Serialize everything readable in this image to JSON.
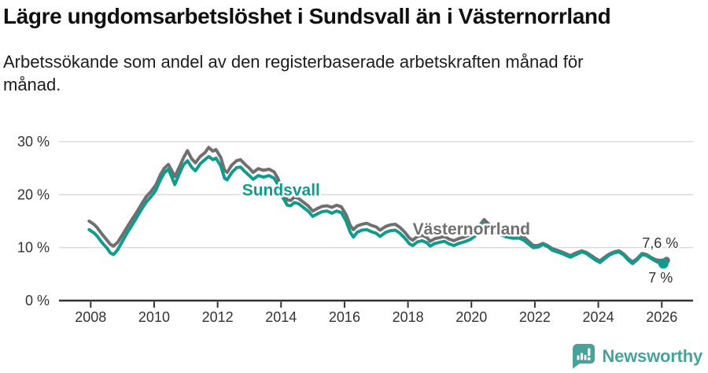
{
  "header": {
    "title": "Lägre ungdomsarbetslöshet i Sundsvall än i Västernorrland",
    "subtitle_lines": [
      "Arbetssökande som andel av den registerbaserade arbetskraften månad för",
      "månad."
    ]
  },
  "footer": {
    "brand": "Newsworthy",
    "logo_icon": "newsworthy-speech-bubble-bar-chart",
    "brand_color": "#48a29a"
  },
  "chart_data": {
    "type": "line",
    "title": "Lägre ungdomsarbetslöshet i Sundsvall än i Västernorrland",
    "ylabel": "",
    "xlabel": "",
    "grid": "horizontal",
    "legend_position": "inline-labels",
    "x_axis": {
      "min": 2007.0,
      "max": 2026.97,
      "ticks": [
        2008,
        2010,
        2012,
        2014,
        2016,
        2018,
        2020,
        2022,
        2024,
        2026
      ]
    },
    "y_axis": {
      "min": 0,
      "max": 32,
      "unit": "%",
      "ticks": [
        {
          "value": 0,
          "label": "0 %"
        },
        {
          "value": 10,
          "label": "10 %"
        },
        {
          "value": 20,
          "label": "20 %"
        },
        {
          "value": 30,
          "label": "30 %"
        }
      ]
    },
    "colors": {
      "grid": "#dadada",
      "axis": "#333333",
      "tick_text": "#333333"
    },
    "series": [
      {
        "name": "Västernorrland",
        "color": "#6f6f6f",
        "end_value_label": {
          "text": "7,6 %",
          "dx": 15,
          "dy": -16
        },
        "end_dot_radius": 4.5,
        "inline_label": {
          "text": "Västernorrland",
          "x": 2020.0,
          "y": 13.5
        },
        "points": [
          [
            2007.95,
            15.0
          ],
          [
            2008.1,
            14.4
          ],
          [
            2008.2,
            13.8
          ],
          [
            2008.35,
            12.6
          ],
          [
            2008.5,
            11.5
          ],
          [
            2008.62,
            10.6
          ],
          [
            2008.72,
            10.3
          ],
          [
            2008.85,
            11.0
          ],
          [
            2009.0,
            12.4
          ],
          [
            2009.15,
            13.9
          ],
          [
            2009.3,
            15.3
          ],
          [
            2009.45,
            16.7
          ],
          [
            2009.6,
            18.2
          ],
          [
            2009.75,
            19.6
          ],
          [
            2009.9,
            20.6
          ],
          [
            2010.05,
            21.8
          ],
          [
            2010.2,
            23.8
          ],
          [
            2010.32,
            25.0
          ],
          [
            2010.45,
            25.7
          ],
          [
            2010.55,
            24.6
          ],
          [
            2010.65,
            23.4
          ],
          [
            2010.8,
            25.3
          ],
          [
            2010.92,
            26.9
          ],
          [
            2011.05,
            28.3
          ],
          [
            2011.18,
            26.8
          ],
          [
            2011.3,
            26.0
          ],
          [
            2011.45,
            27.2
          ],
          [
            2011.6,
            27.9
          ],
          [
            2011.72,
            28.9
          ],
          [
            2011.85,
            28.2
          ],
          [
            2011.95,
            28.5
          ],
          [
            2012.1,
            27.0
          ],
          [
            2012.22,
            24.6
          ],
          [
            2012.3,
            24.2
          ],
          [
            2012.45,
            25.6
          ],
          [
            2012.6,
            26.4
          ],
          [
            2012.72,
            26.6
          ],
          [
            2012.85,
            25.8
          ],
          [
            2013.0,
            25.0
          ],
          [
            2013.12,
            24.2
          ],
          [
            2013.28,
            24.9
          ],
          [
            2013.45,
            24.6
          ],
          [
            2013.62,
            24.8
          ],
          [
            2013.78,
            24.3
          ],
          [
            2013.9,
            23.1
          ],
          [
            2014.05,
            20.6
          ],
          [
            2014.2,
            19.0
          ],
          [
            2014.3,
            18.9
          ],
          [
            2014.42,
            19.5
          ],
          [
            2014.55,
            19.3
          ],
          [
            2014.7,
            18.6
          ],
          [
            2014.85,
            17.9
          ],
          [
            2015.0,
            16.9
          ],
          [
            2015.15,
            17.4
          ],
          [
            2015.3,
            17.8
          ],
          [
            2015.45,
            17.9
          ],
          [
            2015.6,
            17.6
          ],
          [
            2015.75,
            18.0
          ],
          [
            2015.9,
            17.7
          ],
          [
            2016.05,
            16.2
          ],
          [
            2016.18,
            14.2
          ],
          [
            2016.28,
            13.4
          ],
          [
            2016.4,
            14.1
          ],
          [
            2016.55,
            14.4
          ],
          [
            2016.7,
            14.6
          ],
          [
            2016.85,
            14.2
          ],
          [
            2017.0,
            13.9
          ],
          [
            2017.12,
            13.3
          ],
          [
            2017.3,
            14.0
          ],
          [
            2017.45,
            14.3
          ],
          [
            2017.6,
            14.4
          ],
          [
            2017.75,
            13.8
          ],
          [
            2017.9,
            12.9
          ],
          [
            2018.05,
            11.8
          ],
          [
            2018.15,
            11.4
          ],
          [
            2018.3,
            12.1
          ],
          [
            2018.45,
            12.3
          ],
          [
            2018.6,
            11.9
          ],
          [
            2018.7,
            11.2
          ],
          [
            2018.85,
            11.7
          ],
          [
            2019.0,
            11.9
          ],
          [
            2019.15,
            12.1
          ],
          [
            2019.3,
            11.6
          ],
          [
            2019.45,
            11.3
          ],
          [
            2019.6,
            11.7
          ],
          [
            2019.78,
            12.0
          ],
          [
            2019.95,
            12.4
          ],
          [
            2020.1,
            13.0
          ],
          [
            2020.25,
            14.1
          ],
          [
            2020.4,
            15.3
          ],
          [
            2020.52,
            14.6
          ],
          [
            2020.65,
            13.9
          ],
          [
            2020.8,
            13.6
          ],
          [
            2020.95,
            13.3
          ],
          [
            2021.1,
            12.9
          ],
          [
            2021.3,
            12.6
          ],
          [
            2021.5,
            12.5
          ],
          [
            2021.65,
            12.0
          ],
          [
            2021.8,
            11.2
          ],
          [
            2021.95,
            10.4
          ],
          [
            2022.1,
            10.4
          ],
          [
            2022.25,
            10.8
          ],
          [
            2022.4,
            10.4
          ],
          [
            2022.55,
            9.8
          ],
          [
            2022.7,
            9.5
          ],
          [
            2022.85,
            9.2
          ],
          [
            2023.0,
            8.8
          ],
          [
            2023.12,
            8.5
          ],
          [
            2023.3,
            9.0
          ],
          [
            2023.48,
            9.4
          ],
          [
            2023.62,
            9.1
          ],
          [
            2023.78,
            8.5
          ],
          [
            2023.92,
            7.9
          ],
          [
            2024.05,
            7.5
          ],
          [
            2024.2,
            8.2
          ],
          [
            2024.35,
            8.8
          ],
          [
            2024.5,
            9.2
          ],
          [
            2024.65,
            9.4
          ],
          [
            2024.8,
            8.8
          ],
          [
            2024.95,
            7.9
          ],
          [
            2025.08,
            7.3
          ],
          [
            2025.22,
            7.9
          ],
          [
            2025.38,
            8.9
          ],
          [
            2025.52,
            8.7
          ],
          [
            2025.68,
            8.1
          ],
          [
            2025.82,
            7.7
          ],
          [
            2025.95,
            7.6
          ],
          [
            2026.15,
            7.6
          ]
        ]
      },
      {
        "name": "Sundsvall",
        "color": "#119b8e",
        "end_value_label": {
          "text": "7 %",
          "dx": 12,
          "dy": 24
        },
        "end_dot_radius": 6.5,
        "inline_label": {
          "text": "Sundsvall",
          "x": 2014.0,
          "y": 20.9
        },
        "points": [
          [
            2007.95,
            13.4
          ],
          [
            2008.1,
            12.8
          ],
          [
            2008.2,
            12.2
          ],
          [
            2008.35,
            11.0
          ],
          [
            2008.5,
            10.0
          ],
          [
            2008.62,
            9.0
          ],
          [
            2008.72,
            8.7
          ],
          [
            2008.85,
            9.6
          ],
          [
            2009.0,
            11.2
          ],
          [
            2009.15,
            12.8
          ],
          [
            2009.3,
            14.2
          ],
          [
            2009.45,
            15.7
          ],
          [
            2009.6,
            17.2
          ],
          [
            2009.75,
            18.6
          ],
          [
            2009.9,
            19.6
          ],
          [
            2010.05,
            20.8
          ],
          [
            2010.2,
            22.8
          ],
          [
            2010.32,
            24.1
          ],
          [
            2010.45,
            24.8
          ],
          [
            2010.55,
            23.4
          ],
          [
            2010.65,
            21.9
          ],
          [
            2010.8,
            24.0
          ],
          [
            2010.92,
            25.6
          ],
          [
            2011.05,
            26.4
          ],
          [
            2011.18,
            25.2
          ],
          [
            2011.3,
            24.5
          ],
          [
            2011.45,
            25.8
          ],
          [
            2011.6,
            26.6
          ],
          [
            2011.72,
            27.2
          ],
          [
            2011.85,
            26.6
          ],
          [
            2011.95,
            26.9
          ],
          [
            2012.1,
            25.4
          ],
          [
            2012.22,
            23.1
          ],
          [
            2012.3,
            22.8
          ],
          [
            2012.45,
            24.2
          ],
          [
            2012.6,
            25.1
          ],
          [
            2012.72,
            25.2
          ],
          [
            2012.85,
            24.4
          ],
          [
            2013.0,
            23.6
          ],
          [
            2013.12,
            22.9
          ],
          [
            2013.28,
            23.6
          ],
          [
            2013.45,
            23.3
          ],
          [
            2013.62,
            23.6
          ],
          [
            2013.78,
            23.1
          ],
          [
            2013.9,
            21.9
          ],
          [
            2014.05,
            19.5
          ],
          [
            2014.2,
            18.0
          ],
          [
            2014.3,
            17.9
          ],
          [
            2014.42,
            18.5
          ],
          [
            2014.55,
            18.3
          ],
          [
            2014.7,
            17.6
          ],
          [
            2014.85,
            16.9
          ],
          [
            2015.0,
            15.9
          ],
          [
            2015.15,
            16.4
          ],
          [
            2015.3,
            16.8
          ],
          [
            2015.45,
            16.9
          ],
          [
            2015.6,
            16.5
          ],
          [
            2015.75,
            16.9
          ],
          [
            2015.9,
            16.6
          ],
          [
            2016.05,
            15.0
          ],
          [
            2016.18,
            12.9
          ],
          [
            2016.28,
            12.0
          ],
          [
            2016.4,
            12.9
          ],
          [
            2016.55,
            13.3
          ],
          [
            2016.7,
            13.4
          ],
          [
            2016.85,
            13.0
          ],
          [
            2017.0,
            12.7
          ],
          [
            2017.12,
            12.1
          ],
          [
            2017.3,
            12.9
          ],
          [
            2017.45,
            13.2
          ],
          [
            2017.6,
            13.3
          ],
          [
            2017.75,
            12.7
          ],
          [
            2017.9,
            11.8
          ],
          [
            2018.05,
            10.7
          ],
          [
            2018.15,
            10.4
          ],
          [
            2018.3,
            11.1
          ],
          [
            2018.45,
            11.3
          ],
          [
            2018.6,
            10.9
          ],
          [
            2018.7,
            10.3
          ],
          [
            2018.85,
            10.8
          ],
          [
            2019.0,
            11.0
          ],
          [
            2019.15,
            11.2
          ],
          [
            2019.3,
            10.7
          ],
          [
            2019.45,
            10.4
          ],
          [
            2019.6,
            10.8
          ],
          [
            2019.78,
            11.1
          ],
          [
            2019.95,
            11.5
          ],
          [
            2020.1,
            12.1
          ],
          [
            2020.25,
            13.3
          ],
          [
            2020.4,
            14.6
          ],
          [
            2020.52,
            13.9
          ],
          [
            2020.65,
            13.1
          ],
          [
            2020.8,
            12.7
          ],
          [
            2020.95,
            12.4
          ],
          [
            2021.1,
            12.0
          ],
          [
            2021.3,
            11.8
          ],
          [
            2021.5,
            11.8
          ],
          [
            2021.65,
            11.4
          ],
          [
            2021.8,
            10.7
          ],
          [
            2021.95,
            10.0
          ],
          [
            2022.1,
            10.1
          ],
          [
            2022.25,
            10.6
          ],
          [
            2022.4,
            10.2
          ],
          [
            2022.55,
            9.5
          ],
          [
            2022.7,
            9.2
          ],
          [
            2022.85,
            8.9
          ],
          [
            2023.0,
            8.5
          ],
          [
            2023.12,
            8.2
          ],
          [
            2023.3,
            8.7
          ],
          [
            2023.48,
            9.2
          ],
          [
            2023.62,
            8.9
          ],
          [
            2023.78,
            8.2
          ],
          [
            2023.92,
            7.6
          ],
          [
            2024.05,
            7.2
          ],
          [
            2024.2,
            7.9
          ],
          [
            2024.35,
            8.6
          ],
          [
            2024.5,
            9.0
          ],
          [
            2024.65,
            9.2
          ],
          [
            2024.8,
            8.6
          ],
          [
            2024.95,
            7.6
          ],
          [
            2025.08,
            7.0
          ],
          [
            2025.22,
            7.7
          ],
          [
            2025.38,
            8.7
          ],
          [
            2025.52,
            8.5
          ],
          [
            2025.68,
            7.9
          ],
          [
            2025.82,
            7.4
          ],
          [
            2025.95,
            7.1
          ],
          [
            2026.05,
            7.0
          ]
        ]
      }
    ]
  }
}
